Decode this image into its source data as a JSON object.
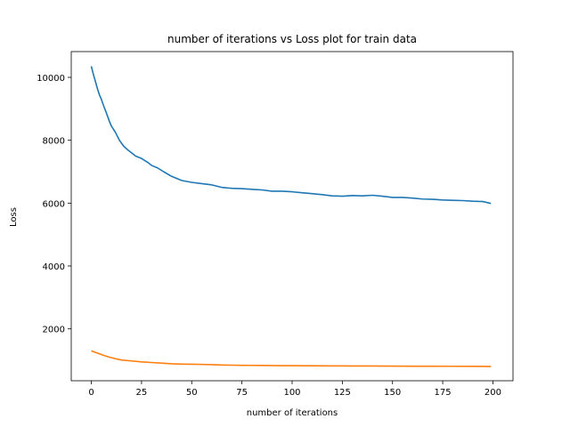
{
  "chart_data": {
    "type": "line",
    "title": "number of iterations vs Loss plot for train data",
    "xlabel": "number of iterations",
    "ylabel": "Loss",
    "xlim": [
      -10,
      210
    ],
    "ylim": [
      350,
      10820
    ],
    "xticks": [
      0,
      25,
      50,
      75,
      100,
      125,
      150,
      175,
      200
    ],
    "yticks": [
      2000,
      4000,
      6000,
      8000,
      10000
    ],
    "grid": false,
    "legend": "none",
    "series": [
      {
        "color": "#1f77b4",
        "x": [
          0,
          1,
          2,
          3,
          4,
          5,
          6,
          7,
          8,
          9,
          10,
          12,
          14,
          16,
          18,
          20,
          22,
          25,
          28,
          30,
          33,
          36,
          40,
          45,
          50,
          55,
          60,
          65,
          70,
          75,
          80,
          85,
          90,
          95,
          100,
          105,
          110,
          115,
          120,
          125,
          130,
          135,
          140,
          145,
          150,
          155,
          160,
          165,
          170,
          175,
          180,
          185,
          190,
          195,
          199
        ],
        "y": [
          10350,
          10100,
          9880,
          9650,
          9450,
          9300,
          9120,
          8950,
          8780,
          8600,
          8450,
          8250,
          8000,
          7820,
          7700,
          7600,
          7500,
          7420,
          7300,
          7200,
          7120,
          7000,
          6850,
          6720,
          6660,
          6620,
          6580,
          6500,
          6470,
          6460,
          6440,
          6420,
          6380,
          6380,
          6360,
          6330,
          6300,
          6270,
          6230,
          6220,
          6240,
          6230,
          6250,
          6220,
          6180,
          6180,
          6160,
          6130,
          6120,
          6100,
          6090,
          6080,
          6060,
          6050,
          5990
        ]
      },
      {
        "color": "#ff7f0e",
        "x": [
          0,
          3,
          6,
          9,
          12,
          15,
          20,
          25,
          30,
          35,
          40,
          45,
          50,
          55,
          60,
          65,
          70,
          75,
          80,
          85,
          90,
          95,
          100,
          110,
          120,
          130,
          140,
          150,
          160,
          170,
          180,
          190,
          199
        ],
        "y": [
          1300,
          1230,
          1160,
          1100,
          1050,
          1010,
          980,
          950,
          930,
          910,
          890,
          880,
          875,
          870,
          860,
          850,
          845,
          840,
          838,
          835,
          832,
          830,
          828,
          825,
          822,
          820,
          818,
          815,
          813,
          812,
          810,
          808,
          805
        ]
      }
    ]
  }
}
